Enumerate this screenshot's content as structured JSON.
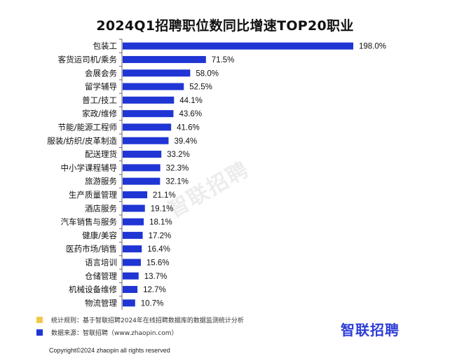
{
  "chart_data": {
    "type": "bar",
    "orientation": "horizontal",
    "title": "2024Q1招聘职位数同比增速TOP20职业",
    "categories": [
      "包装工",
      "客货运司机/乘务",
      "会展会务",
      "留学辅导",
      "普工/技工",
      "家政/维修",
      "节能/能源工程师",
      "服装/纺织/皮革制造",
      "配送理货",
      "中小学课程辅导",
      "旅游服务",
      "生产质量管理",
      "酒店服务",
      "汽车销售与服务",
      "健康/美容",
      "医药市场/销售",
      "语言培训",
      "仓储管理",
      "机械设备维修",
      "物流管理"
    ],
    "values": [
      198.0,
      71.5,
      58.0,
      52.5,
      44.1,
      43.6,
      41.6,
      39.4,
      33.2,
      32.3,
      32.1,
      21.1,
      19.1,
      18.1,
      17.2,
      16.4,
      15.6,
      13.7,
      12.7,
      10.7
    ],
    "value_labels": [
      "198.0%",
      "71.5%",
      "58.0%",
      "52.5%",
      "44.1%",
      "43.6%",
      "41.6%",
      "39.4%",
      "33.2%",
      "32.3%",
      "32.1%",
      "21.1%",
      "19.1%",
      "18.1%",
      "17.2%",
      "16.4%",
      "15.6%",
      "13.7%",
      "12.7%",
      "10.7%"
    ],
    "bar_color": "#1f35d4",
    "grid": false,
    "legend": "none"
  },
  "watermark": "智联招聘",
  "notes": [
    {
      "text": "统计规则：基于智联招聘2024年在线招聘数据库的数据监测统计分析",
      "color": "#f2c84b"
    },
    {
      "text": "数据来源：智联招聘（www.zhaopin.com）",
      "color": "#1f35d4"
    }
  ],
  "logo": "智联招聘",
  "copyright": "Copyright©2024 zhaopin all rights reserved"
}
